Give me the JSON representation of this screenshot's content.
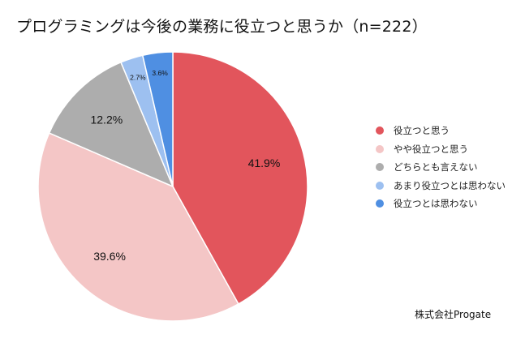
{
  "title": "プログラミングは今後の業務に役立つと思うか（n=222）",
  "source": "株式会社Progate",
  "chart_data": {
    "type": "pie",
    "title": "プログラミングは今後の業務に役立つと思うか（n=222）",
    "start": "12 o'clock",
    "direction": "clockwise",
    "legend_position": "right",
    "slices": [
      {
        "label": "役立つと思う",
        "value": 41.9,
        "value_label": "41.9%",
        "color": "#e2555c"
      },
      {
        "label": "やや役立つと思う",
        "value": 39.6,
        "value_label": "39.6%",
        "color": "#f4c6c6"
      },
      {
        "label": "どちらとも言えない",
        "value": 12.2,
        "value_label": "12.2%",
        "color": "#adadad"
      },
      {
        "label": "あまり役立つとは思わない",
        "value": 2.7,
        "value_label": "2.7%",
        "color": "#9dc0f0"
      },
      {
        "label": "役立つとは思わない",
        "value": 3.6,
        "value_label": "3.6%",
        "color": "#4f8fe2"
      }
    ]
  }
}
